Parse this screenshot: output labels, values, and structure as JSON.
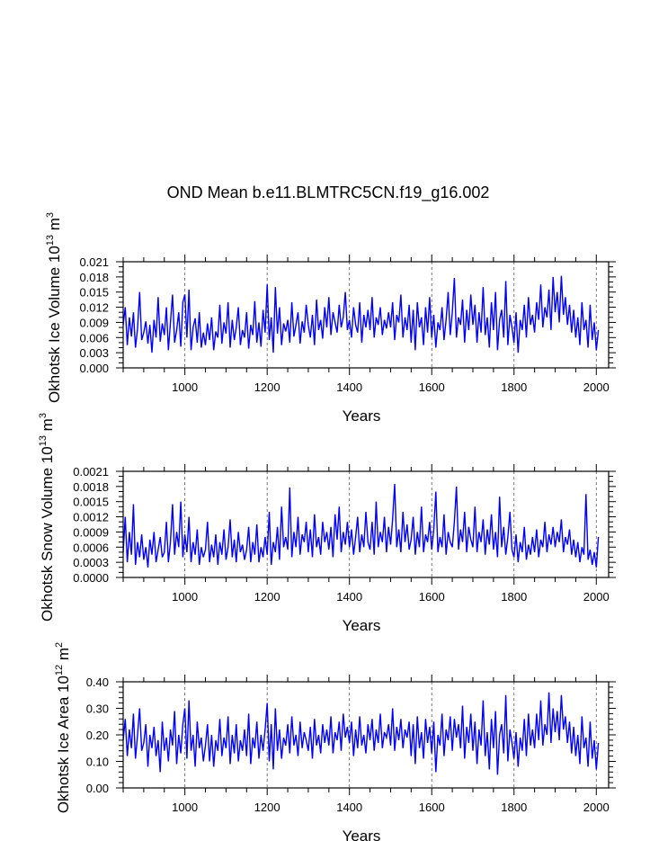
{
  "title": "OND Mean b.e11.BLMTRC5CN.f19_g16.002",
  "chart_data": [
    {
      "type": "line",
      "xlabel": "Years",
      "ylabel": "Okhotsk Ice Volume",
      "yunits": {
        "base": "10",
        "exp": "13",
        "unit": "m",
        "unit_exp": "3"
      },
      "xlim": [
        850,
        2030
      ],
      "ylim": [
        0,
        0.021
      ],
      "xticks": [
        1000,
        1200,
        1400,
        1600,
        1800,
        2000
      ],
      "xtick_labels": [
        "1000",
        "1200",
        "1400",
        "1600",
        "1800",
        "2000"
      ],
      "yticks": [
        0,
        0.003,
        0.006,
        0.009,
        0.012,
        0.015,
        0.018,
        0.021
      ],
      "ytick_labels": [
        "0.000",
        "0.003",
        "0.006",
        "0.009",
        "0.012",
        "0.015",
        "0.018",
        "0.021"
      ],
      "yminor_per_major": 3,
      "grid": "dashed vertical lines at major x ticks",
      "color": "#0000ff",
      "x_start": 850,
      "x_step": 5,
      "values": [
        0.0085,
        0.012,
        0.0045,
        0.01,
        0.0062,
        0.011,
        0.004,
        0.0078,
        0.015,
        0.0055,
        0.007,
        0.0092,
        0.0048,
        0.0085,
        0.003,
        0.0095,
        0.006,
        0.014,
        0.0052,
        0.0088,
        0.0065,
        0.012,
        0.0035,
        0.009,
        0.0145,
        0.005,
        0.0075,
        0.011,
        0.0042,
        0.013,
        0.0145,
        0.006,
        0.0155,
        0.0035,
        0.008,
        0.0098,
        0.005,
        0.011,
        0.004,
        0.007,
        0.0045,
        0.0088,
        0.0055,
        0.01,
        0.0035,
        0.0072,
        0.006,
        0.0125,
        0.0048,
        0.009,
        0.0068,
        0.013,
        0.004,
        0.0095,
        0.0055,
        0.008,
        0.012,
        0.0045,
        0.0075,
        0.006,
        0.011,
        0.0038,
        0.0085,
        0.0065,
        0.0132,
        0.005,
        0.009,
        0.0042,
        0.0115,
        0.007,
        0.0165,
        0.0055,
        0.01,
        0.003,
        0.016,
        0.0068,
        0.012,
        0.0045,
        0.0088,
        0.0072,
        0.0095,
        0.005,
        0.013,
        0.0062,
        0.0085,
        0.011,
        0.0048,
        0.0092,
        0.007,
        0.0125,
        0.0085,
        0.006,
        0.0105,
        0.0045,
        0.0135,
        0.0075,
        0.0095,
        0.0058,
        0.012,
        0.008,
        0.014,
        0.0065,
        0.011,
        0.009,
        0.007,
        0.0125,
        0.008,
        0.01,
        0.015,
        0.0075,
        0.0095,
        0.006,
        0.012,
        0.0085,
        0.007,
        0.013,
        0.005,
        0.0105,
        0.008,
        0.0115,
        0.0075,
        0.014,
        0.006,
        0.01,
        0.0085,
        0.012,
        0.0065,
        0.0095,
        0.0078,
        0.011,
        0.008,
        0.013,
        0.0055,
        0.0105,
        0.009,
        0.0145,
        0.006,
        0.01,
        0.0075,
        0.0125,
        0.005,
        0.0115,
        0.0035,
        0.013,
        0.008,
        0.01,
        0.0045,
        0.012,
        0.007,
        0.014,
        0.006,
        0.0105,
        0.004,
        0.009,
        0.0075,
        0.012,
        0.0055,
        0.0095,
        0.015,
        0.0065,
        0.011,
        0.0178,
        0.006,
        0.01,
        0.0085,
        0.0135,
        0.005,
        0.0115,
        0.0075,
        0.0145,
        0.0085,
        0.0125,
        0.005,
        0.011,
        0.007,
        0.016,
        0.0065,
        0.01,
        0.004,
        0.013,
        0.0075,
        0.015,
        0.0035,
        0.0095,
        0.0115,
        0.006,
        0.0172,
        0.0045,
        0.0105,
        0.008,
        0.005,
        0.011,
        0.003,
        0.0095,
        0.0075,
        0.0125,
        0.006,
        0.014,
        0.0085,
        0.0105,
        0.007,
        0.013,
        0.0095,
        0.0165,
        0.008,
        0.012,
        0.01,
        0.0155,
        0.0075,
        0.018,
        0.011,
        0.015,
        0.009,
        0.0182,
        0.0105,
        0.014,
        0.0085,
        0.0125,
        0.007,
        0.0115,
        0.006,
        0.01,
        0.0045,
        0.013,
        0.0075,
        0.0095,
        0.004,
        0.0125,
        0.0055,
        0.009,
        0.0035,
        0.0075
      ]
    },
    {
      "type": "line",
      "xlabel": "Years",
      "ylabel": "Okhotsk Snow Volume",
      "yunits": {
        "base": "10",
        "exp": "13",
        "unit": "m",
        "unit_exp": "3"
      },
      "xlim": [
        850,
        2030
      ],
      "ylim": [
        0,
        0.0021
      ],
      "xticks": [
        1000,
        1200,
        1400,
        1600,
        1800,
        2000
      ],
      "xtick_labels": [
        "1000",
        "1200",
        "1400",
        "1600",
        "1800",
        "2000"
      ],
      "yticks": [
        0,
        0.0003,
        0.0006,
        0.0009,
        0.0012,
        0.0015,
        0.0018,
        0.0021
      ],
      "ytick_labels": [
        "0.0000",
        "0.0003",
        "0.0006",
        "0.0009",
        "0.0012",
        "0.0015",
        "0.0018",
        "0.0021"
      ],
      "yminor_per_major": 3,
      "grid": "dashed vertical lines at major x ticks",
      "color": "#0000ff",
      "x_start": 850,
      "x_step": 5,
      "values": [
        0.0005,
        0.0012,
        0.0003,
        0.0009,
        0.00045,
        0.00145,
        0.00025,
        0.0007,
        0.0004,
        0.00085,
        0.00035,
        0.0006,
        0.0002,
        0.00075,
        0.00045,
        0.0009,
        0.0003,
        0.00055,
        0.0008,
        0.0004,
        0.0005,
        0.0011,
        0.0003,
        0.0007,
        0.00145,
        0.00045,
        0.0009,
        0.0006,
        0.0015,
        0.0004,
        0.00085,
        0.0005,
        0.0012,
        0.0003,
        0.0007,
        0.00045,
        0.00095,
        0.00025,
        0.0006,
        0.0004,
        0.00055,
        0.0011,
        0.0003,
        0.00065,
        0.0004,
        0.00085,
        0.00025,
        0.0007,
        0.00045,
        0.00095,
        0.00035,
        0.0006,
        0.00115,
        0.0004,
        0.00075,
        0.0003,
        0.0009,
        0.0005,
        0.00065,
        0.00035,
        0.00055,
        0.001,
        0.0003,
        0.0007,
        0.00045,
        0.00105,
        0.0003,
        0.0006,
        0.0004,
        0.0008,
        0.00045,
        0.0013,
        0.00025,
        0.0007,
        0.0005,
        0.001,
        0.00035,
        0.0014,
        0.0006,
        0.0008,
        0.00055,
        0.00178,
        0.0004,
        0.0009,
        0.0006,
        0.0012,
        0.00045,
        0.00085,
        0.0007,
        0.0011,
        0.0005,
        0.00095,
        0.0004,
        0.00125,
        0.0006,
        0.0008,
        0.00045,
        0.0011,
        0.0007,
        0.0009,
        0.00055,
        0.001,
        0.0004,
        0.00125,
        0.00075,
        0.0014,
        0.0005,
        0.0009,
        0.00065,
        0.0011,
        0.0006,
        0.00095,
        0.00045,
        0.0008,
        0.0012,
        0.0005,
        0.00085,
        0.0006,
        0.0013,
        0.0007,
        0.00055,
        0.0011,
        0.00045,
        0.0015,
        0.0006,
        0.0009,
        0.0007,
        0.0012,
        0.0005,
        0.001,
        0.00065,
        0.00115,
        0.00185,
        0.0006,
        0.00095,
        0.0005,
        0.0013,
        0.0007,
        0.00105,
        0.00055,
        0.00075,
        0.0012,
        0.00045,
        0.0009,
        0.0006,
        0.0014,
        0.0005,
        0.00085,
        0.0007,
        0.0011,
        0.00055,
        0.00095,
        0.0017,
        0.0005,
        0.0008,
        0.0006,
        0.00125,
        0.00045,
        0.0009,
        0.0007,
        0.0006,
        0.0011,
        0.0018,
        0.00055,
        0.00095,
        0.0007,
        0.0013,
        0.0005,
        0.001,
        0.00075,
        0.0006,
        0.0014,
        0.0005,
        0.0009,
        0.0007,
        0.00115,
        0.00045,
        0.00095,
        0.00065,
        0.00125,
        0.00055,
        0.0009,
        0.0004,
        0.0016,
        0.0006,
        0.001,
        0.00045,
        0.0008,
        0.0013,
        0.00055,
        0.0004,
        0.00085,
        0.0003,
        0.0007,
        0.0005,
        0.001,
        0.00035,
        0.00065,
        0.00045,
        0.0008,
        0.0005,
        0.00095,
        0.0004,
        0.00075,
        0.0006,
        0.0011,
        0.0005,
        0.00085,
        0.00065,
        0.001,
        0.0006,
        0.0009,
        0.0007,
        0.00115,
        0.0005,
        0.0008,
        0.00065,
        0.00095,
        0.00045,
        0.00075,
        0.0004,
        0.0007,
        0.0003,
        0.0006,
        0.00045,
        0.00165,
        0.00035,
        0.00055,
        0.00025,
        0.0005,
        0.0002,
        0.0008
      ]
    },
    {
      "type": "line",
      "xlabel": "Years",
      "ylabel": "Okhotsk Ice Area",
      "yunits": {
        "base": "10",
        "exp": "12",
        "unit": "m",
        "unit_exp": "2"
      },
      "xlim": [
        850,
        2030
      ],
      "ylim": [
        0,
        0.4
      ],
      "xticks": [
        1000,
        1200,
        1400,
        1600,
        1800,
        2000
      ],
      "xtick_labels": [
        "1000",
        "1200",
        "1400",
        "1600",
        "1800",
        "2000"
      ],
      "yticks": [
        0,
        0.1,
        0.2,
        0.3,
        0.4
      ],
      "ytick_labels": [
        "0.00",
        "0.10",
        "0.20",
        "0.30",
        "0.40"
      ],
      "yminor_per_major": 5,
      "grid": "dashed vertical lines at major x ticks",
      "color": "#0000ff",
      "x_start": 850,
      "x_step": 5,
      "values": [
        0.18,
        0.26,
        0.12,
        0.22,
        0.15,
        0.28,
        0.11,
        0.2,
        0.3,
        0.14,
        0.17,
        0.24,
        0.08,
        0.2,
        0.15,
        0.23,
        0.12,
        0.18,
        0.06,
        0.25,
        0.14,
        0.19,
        0.1,
        0.22,
        0.16,
        0.29,
        0.09,
        0.2,
        0.13,
        0.24,
        0.3,
        0.11,
        0.33,
        0.14,
        0.2,
        0.08,
        0.25,
        0.15,
        0.19,
        0.1,
        0.16,
        0.24,
        0.1,
        0.2,
        0.08,
        0.18,
        0.14,
        0.26,
        0.12,
        0.19,
        0.15,
        0.27,
        0.09,
        0.2,
        0.13,
        0.24,
        0.1,
        0.18,
        0.14,
        0.22,
        0.12,
        0.28,
        0.09,
        0.19,
        0.15,
        0.25,
        0.11,
        0.2,
        0.14,
        0.22,
        0.32,
        0.1,
        0.24,
        0.07,
        0.3,
        0.14,
        0.22,
        0.11,
        0.19,
        0.16,
        0.24,
        0.13,
        0.27,
        0.16,
        0.2,
        0.12,
        0.25,
        0.15,
        0.21,
        0.18,
        0.14,
        0.23,
        0.11,
        0.26,
        0.16,
        0.2,
        0.13,
        0.24,
        0.17,
        0.22,
        0.16,
        0.27,
        0.13,
        0.21,
        0.18,
        0.25,
        0.14,
        0.28,
        0.19,
        0.23,
        0.17,
        0.25,
        0.12,
        0.22,
        0.15,
        0.27,
        0.16,
        0.2,
        0.13,
        0.24,
        0.18,
        0.26,
        0.14,
        0.22,
        0.17,
        0.28,
        0.15,
        0.21,
        0.19,
        0.24,
        0.16,
        0.3,
        0.14,
        0.23,
        0.18,
        0.26,
        0.15,
        0.22,
        0.19,
        0.25,
        0.12,
        0.24,
        0.09,
        0.27,
        0.15,
        0.21,
        0.11,
        0.26,
        0.17,
        0.23,
        0.13,
        0.25,
        0.06,
        0.2,
        0.16,
        0.28,
        0.12,
        0.22,
        0.18,
        0.27,
        0.14,
        0.26,
        0.19,
        0.24,
        0.15,
        0.31,
        0.11,
        0.23,
        0.17,
        0.28,
        0.14,
        0.25,
        0.09,
        0.22,
        0.16,
        0.33,
        0.12,
        0.21,
        0.07,
        0.26,
        0.15,
        0.29,
        0.05,
        0.2,
        0.24,
        0.13,
        0.35,
        0.1,
        0.22,
        0.17,
        0.11,
        0.21,
        0.08,
        0.19,
        0.14,
        0.26,
        0.12,
        0.28,
        0.16,
        0.22,
        0.15,
        0.28,
        0.18,
        0.33,
        0.16,
        0.24,
        0.2,
        0.36,
        0.17,
        0.3,
        0.21,
        0.29,
        0.18,
        0.35,
        0.22,
        0.27,
        0.17,
        0.25,
        0.13,
        0.23,
        0.12,
        0.2,
        0.09,
        0.27,
        0.15,
        0.19,
        0.08,
        0.25,
        0.11,
        0.18,
        0.07,
        0.17
      ]
    }
  ]
}
